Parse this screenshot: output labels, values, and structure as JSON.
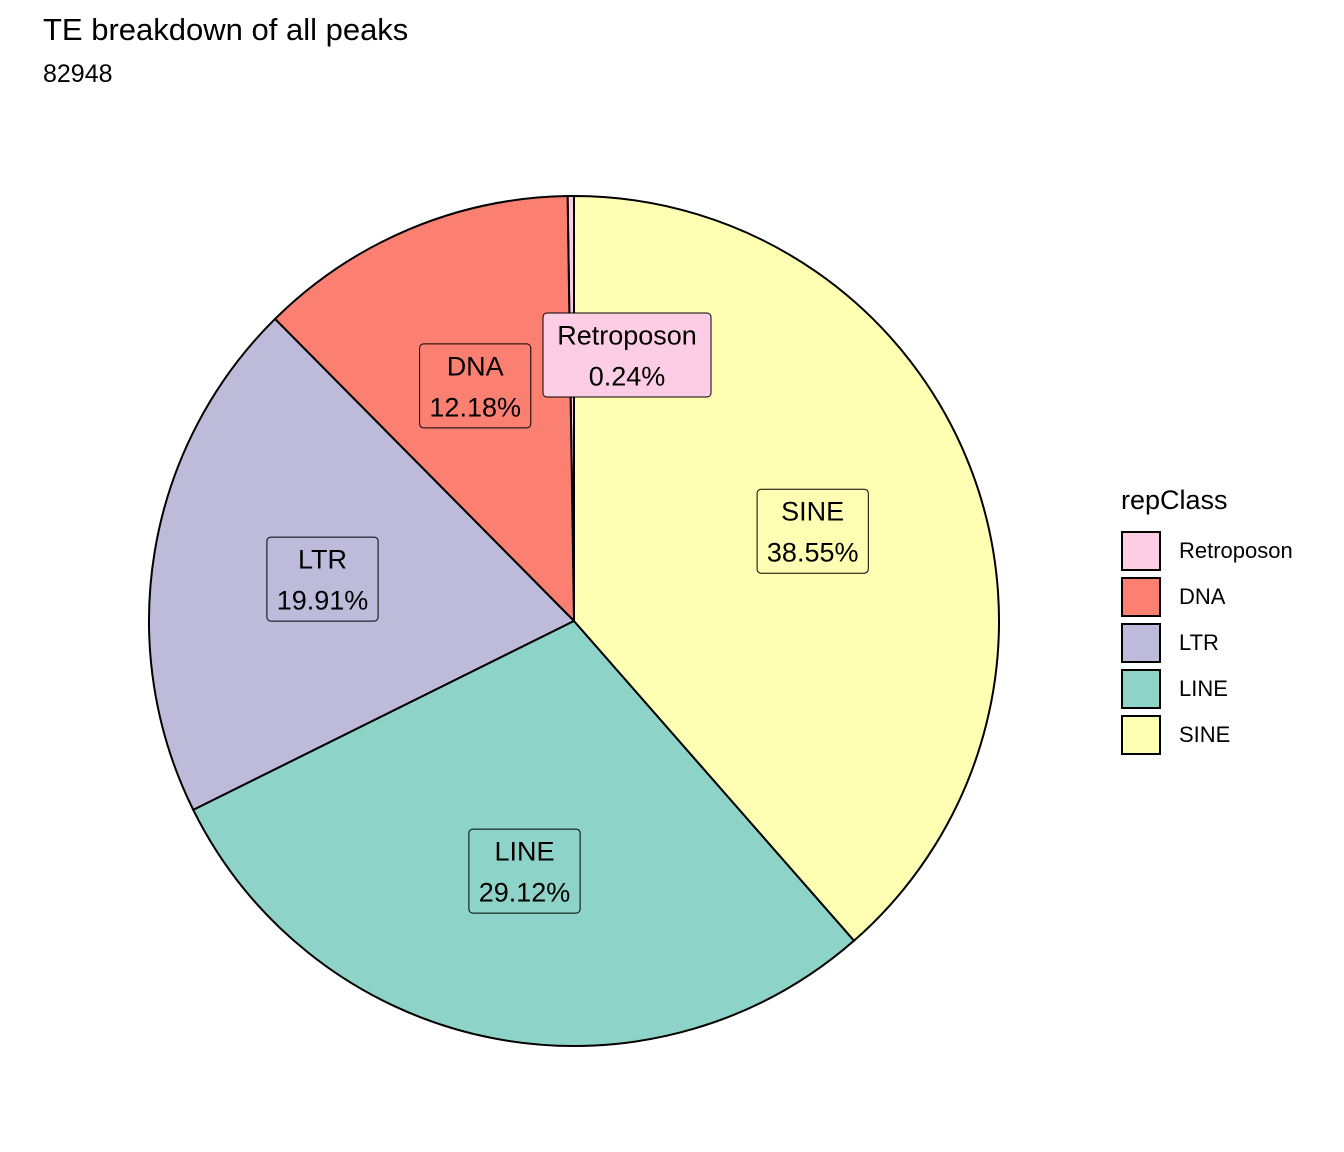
{
  "chart_data": {
    "type": "pie",
    "title": "TE breakdown of all peaks",
    "subtitle": "82948",
    "legend": {
      "title": "repClass",
      "position": "right"
    },
    "slices": [
      {
        "label": "Retroposon",
        "value": 0.24,
        "value_label": "0.24%",
        "color": "#FCCDE5"
      },
      {
        "label": "DNA",
        "value": 12.18,
        "value_label": "12.18%",
        "color": "#FB8072"
      },
      {
        "label": "LTR",
        "value": 19.91,
        "value_label": "19.91%",
        "color": "#BEBADA"
      },
      {
        "label": "LINE",
        "value": 29.12,
        "value_label": "29.12%",
        "color": "#8DD3C7"
      },
      {
        "label": "SINE",
        "value": 38.55,
        "value_label": "38.55%",
        "color": "#FFFFB3"
      }
    ],
    "start": "12 o'clock",
    "direction": "counter-clockwise",
    "legend_order": [
      "Retroposon",
      "DNA",
      "LTR",
      "LINE",
      "SINE"
    ],
    "grid": false
  }
}
